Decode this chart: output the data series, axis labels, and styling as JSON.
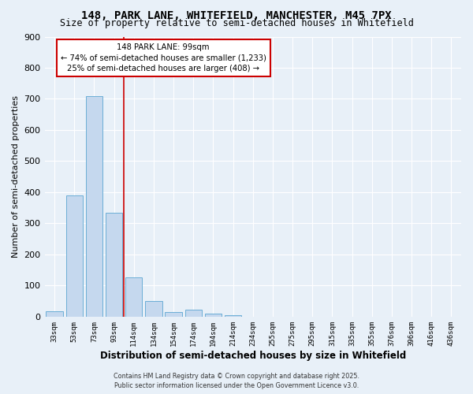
{
  "title1": "148, PARK LANE, WHITEFIELD, MANCHESTER, M45 7PX",
  "title2": "Size of property relative to semi-detached houses in Whitefield",
  "xlabel": "Distribution of semi-detached houses by size in Whitefield",
  "ylabel": "Number of semi-detached properties",
  "categories": [
    "33sqm",
    "53sqm",
    "73sqm",
    "93sqm",
    "114sqm",
    "134sqm",
    "154sqm",
    "174sqm",
    "194sqm",
    "214sqm",
    "234sqm",
    "255sqm",
    "275sqm",
    "295sqm",
    "315sqm",
    "335sqm",
    "355sqm",
    "376sqm",
    "396sqm",
    "416sqm",
    "436sqm"
  ],
  "values": [
    17,
    390,
    710,
    335,
    125,
    50,
    15,
    22,
    10,
    5,
    0,
    0,
    0,
    0,
    0,
    0,
    0,
    0,
    0,
    0,
    0
  ],
  "bar_color": "#c5d8ee",
  "bar_edge_color": "#6baed6",
  "vline_x": 3.5,
  "vline_color": "#cc0000",
  "annotation_title": "148 PARK LANE: 99sqm",
  "annotation_line1": "← 74% of semi-detached houses are smaller (1,233)",
  "annotation_line2": "25% of semi-detached houses are larger (408) →",
  "annotation_box_color": "#ffffff",
  "annotation_box_edge": "#cc0000",
  "ylim": [
    0,
    900
  ],
  "yticks": [
    0,
    100,
    200,
    300,
    400,
    500,
    600,
    700,
    800,
    900
  ],
  "footer1": "Contains HM Land Registry data © Crown copyright and database right 2025.",
  "footer2": "Public sector information licensed under the Open Government Licence v3.0.",
  "bg_color": "#e8f0f8",
  "grid_color": "#ffffff"
}
